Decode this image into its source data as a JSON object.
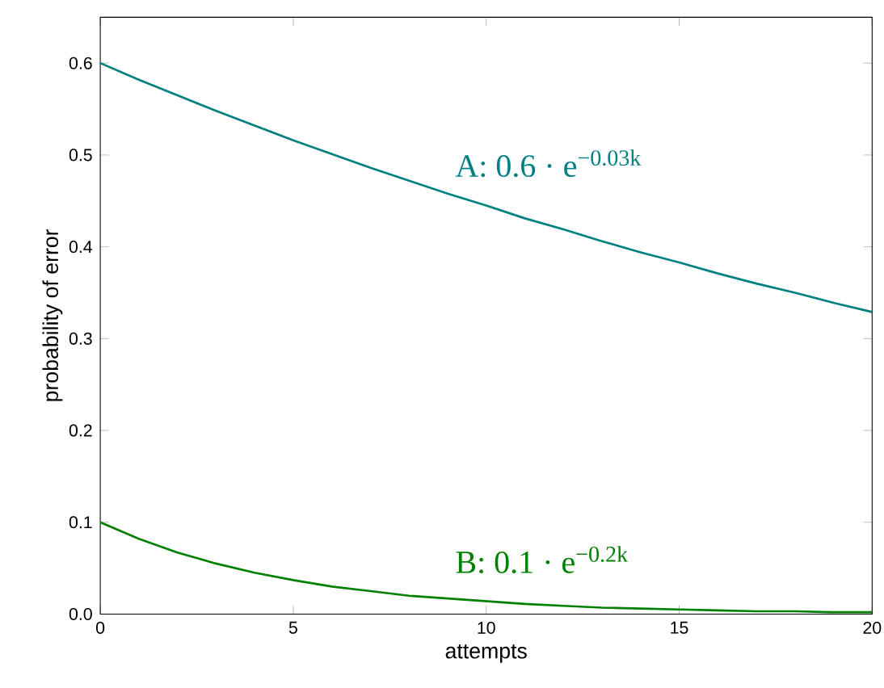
{
  "chart_data": {
    "type": "line",
    "xlabel": "attempts",
    "ylabel": "probability of error",
    "x": [
      0,
      1,
      2,
      3,
      4,
      5,
      6,
      7,
      8,
      9,
      10,
      11,
      12,
      13,
      14,
      15,
      16,
      17,
      18,
      19,
      20
    ],
    "series": [
      {
        "name": "A: 0.6 · e$^{−0.03k}$",
        "color": "#008080",
        "values": [
          0.6,
          0.582,
          0.565,
          0.548,
          0.532,
          0.516,
          0.501,
          0.486,
          0.472,
          0.458,
          0.445,
          0.431,
          0.419,
          0.406,
          0.394,
          0.383,
          0.371,
          0.36,
          0.35,
          0.339,
          0.329
        ]
      },
      {
        "name": "B: 0.1 · e$^{−0.2k}$",
        "color": "#008000",
        "values": [
          0.1,
          0.082,
          0.067,
          0.055,
          0.045,
          0.037,
          0.03,
          0.025,
          0.02,
          0.017,
          0.014,
          0.011,
          0.009,
          0.007,
          0.006,
          0.005,
          0.004,
          0.003,
          0.003,
          0.002,
          0.002
        ]
      }
    ],
    "xlim": [
      0,
      20
    ],
    "ylim": [
      0,
      0.65
    ],
    "xticks": [
      0,
      5,
      10,
      15,
      20
    ],
    "yticks": [
      {
        "value": 0,
        "label": "0.0"
      },
      0.1,
      0.2,
      0.3,
      0.4,
      0.5,
      0.6
    ],
    "grid": false,
    "legend": false,
    "marker": "none",
    "line_style": "solid"
  }
}
